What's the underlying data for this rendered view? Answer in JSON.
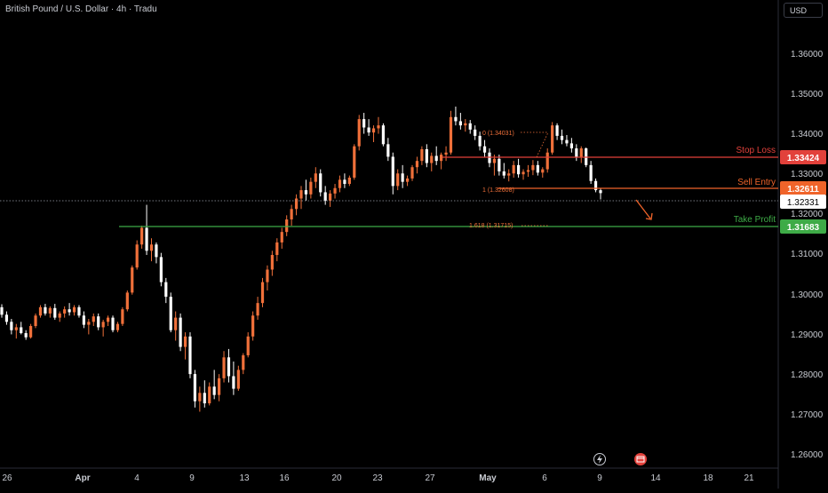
{
  "header": {
    "title": "British Pound / U.S. Dollar · 4h · Tradu",
    "currency": "USD"
  },
  "colors": {
    "bg": "#000000",
    "up": "#f0703a",
    "down": "#ffffff",
    "stop": "#e2413b",
    "entry": "#f0642a",
    "tp": "#3eab47",
    "axis_text": "#c9ccd3"
  },
  "y_axis": {
    "ticks": [
      "1.36000",
      "1.35000",
      "1.34000",
      "1.33000",
      "1.32000",
      "1.31000",
      "1.30000",
      "1.29000",
      "1.28000",
      "1.27000",
      "1.26000"
    ]
  },
  "x_axis": {
    "ticks": [
      "26",
      "Apr",
      "4",
      "9",
      "13",
      "16",
      "20",
      "23",
      "27",
      "May",
      "6",
      "9",
      "14",
      "18",
      "21"
    ]
  },
  "levels": {
    "stop_loss": {
      "label": "Stop Loss",
      "price": "1.33424",
      "value": 1.33424
    },
    "sell_entry": {
      "label": "Sell Entry",
      "price": "1.32611",
      "value": 1.32611
    },
    "take_profit": {
      "label": "Take Profit",
      "price": "1.31683",
      "value": 1.31683
    },
    "current": {
      "price": "1.32331",
      "value": 1.32331
    }
  },
  "fib_labels": {
    "f0": "0 (1.34031)",
    "f1": "1 (1.32608)",
    "f1618": "1.618 (1.31715)"
  },
  "icons": [
    "lightning-icon",
    "calendar-event-icon"
  ],
  "chart_data": {
    "type": "candlestick",
    "title": "British Pound / U.S. Dollar · 4h · Tradu",
    "ylim": [
      1.2575,
      1.3695
    ],
    "series": [
      {
        "name": "GBPUSD 4h",
        "values": [
          [
            1.296,
            1.2967,
            1.2935,
            1.2942
          ],
          [
            1.2942,
            1.295,
            1.2918,
            1.2925
          ],
          [
            1.2925,
            1.2932,
            1.2895,
            1.2905
          ],
          [
            1.2905,
            1.292,
            1.2885,
            1.2912
          ],
          [
            1.2912,
            1.2925,
            1.2895,
            1.2898
          ],
          [
            1.2898,
            1.2905,
            1.2882,
            1.2888
          ],
          [
            1.2888,
            1.292,
            1.2885,
            1.2915
          ],
          [
            1.2915,
            1.2945,
            1.291,
            1.294
          ],
          [
            1.294,
            1.2965,
            1.2935,
            1.296
          ],
          [
            1.296,
            1.2968,
            1.294,
            1.2945
          ],
          [
            1.2945,
            1.2962,
            1.2935,
            1.2958
          ],
          [
            1.2958,
            1.2968,
            1.293,
            1.2935
          ],
          [
            1.2935,
            1.295,
            1.2925,
            1.2945
          ],
          [
            1.2945,
            1.2962,
            1.2935,
            1.2955
          ],
          [
            1.2955,
            1.297,
            1.294,
            1.2948
          ],
          [
            1.2948,
            1.2965,
            1.294,
            1.296
          ],
          [
            1.296,
            1.2965,
            1.2935,
            1.294
          ],
          [
            1.294,
            1.295,
            1.291,
            1.2918
          ],
          [
            1.2918,
            1.2932,
            1.2895,
            1.2925
          ],
          [
            1.2925,
            1.2945,
            1.2915,
            1.2938
          ],
          [
            1.2938,
            1.2945,
            1.2905,
            1.2912
          ],
          [
            1.2912,
            1.293,
            1.289,
            1.2925
          ],
          [
            1.2925,
            1.294,
            1.2915,
            1.2935
          ],
          [
            1.2935,
            1.294,
            1.29,
            1.2905
          ],
          [
            1.2905,
            1.2925,
            1.29,
            1.292
          ],
          [
            1.292,
            1.296,
            1.2915,
            1.2955
          ],
          [
            1.2955,
            1.3,
            1.295,
            1.2995
          ],
          [
            1.2995,
            1.306,
            1.299,
            1.3055
          ],
          [
            1.3055,
            1.312,
            1.305,
            1.311
          ],
          [
            1.311,
            1.3155,
            1.31,
            1.315
          ],
          [
            1.315,
            1.3205,
            1.3085,
            1.3095
          ],
          [
            1.3095,
            1.3125,
            1.307,
            1.311
          ],
          [
            1.311,
            1.3115,
            1.3065,
            1.308
          ],
          [
            1.308,
            1.309,
            1.301,
            1.302
          ],
          [
            1.302,
            1.303,
            1.297,
            1.2985
          ],
          [
            1.2985,
            1.2995,
            1.29,
            1.2905
          ],
          [
            1.2905,
            1.295,
            1.288,
            1.2935
          ],
          [
            1.2935,
            1.2945,
            1.2855,
            1.2865
          ],
          [
            1.2865,
            1.29,
            1.2835,
            1.289
          ],
          [
            1.289,
            1.29,
            1.279,
            1.28
          ],
          [
            1.28,
            1.281,
            1.272,
            1.2735
          ],
          [
            1.2735,
            1.277,
            1.271,
            1.2755
          ],
          [
            1.2755,
            1.2785,
            1.272,
            1.273
          ],
          [
            1.273,
            1.278,
            1.2725,
            1.277
          ],
          [
            1.277,
            1.281,
            1.274,
            1.275
          ],
          [
            1.275,
            1.28,
            1.2735,
            1.279
          ],
          [
            1.279,
            1.2855,
            1.278,
            1.284
          ],
          [
            1.284,
            1.286,
            1.278,
            1.2795
          ],
          [
            1.2795,
            1.283,
            1.275,
            1.2765
          ],
          [
            1.2765,
            1.282,
            1.276,
            1.281
          ],
          [
            1.281,
            1.285,
            1.28,
            1.2845
          ],
          [
            1.2845,
            1.29,
            1.284,
            1.289
          ],
          [
            1.289,
            1.295,
            1.288,
            1.294
          ],
          [
            1.294,
            1.2985,
            1.293,
            1.297
          ],
          [
            1.297,
            1.303,
            1.296,
            1.302
          ],
          [
            1.302,
            1.306,
            1.3,
            1.305
          ],
          [
            1.305,
            1.3095,
            1.3035,
            1.3085
          ],
          [
            1.3085,
            1.3125,
            1.307,
            1.3115
          ],
          [
            1.3115,
            1.315,
            1.31,
            1.314
          ],
          [
            1.314,
            1.318,
            1.313,
            1.317
          ],
          [
            1.317,
            1.3205,
            1.3155,
            1.3195
          ],
          [
            1.3195,
            1.323,
            1.318,
            1.322
          ],
          [
            1.322,
            1.325,
            1.3195,
            1.324
          ],
          [
            1.324,
            1.3265,
            1.3215,
            1.323
          ],
          [
            1.323,
            1.327,
            1.322,
            1.326
          ],
          [
            1.326,
            1.3295,
            1.3245,
            1.328
          ],
          [
            1.328,
            1.329,
            1.3225,
            1.3235
          ],
          [
            1.3235,
            1.325,
            1.3205,
            1.3215
          ],
          [
            1.3215,
            1.324,
            1.32,
            1.3232
          ],
          [
            1.3232,
            1.3255,
            1.322,
            1.3245
          ],
          [
            1.3245,
            1.3275,
            1.3235,
            1.3265
          ],
          [
            1.3265,
            1.328,
            1.3245,
            1.3255
          ],
          [
            1.3255,
            1.3275,
            1.325,
            1.327
          ],
          [
            1.327,
            1.335,
            1.3265,
            1.3345
          ],
          [
            1.3345,
            1.342,
            1.3335,
            1.341
          ],
          [
            1.341,
            1.3425,
            1.3375,
            1.339
          ],
          [
            1.339,
            1.341,
            1.337,
            1.3378
          ],
          [
            1.3378,
            1.3395,
            1.3355,
            1.3388
          ],
          [
            1.3388,
            1.3415,
            1.3375,
            1.3395
          ],
          [
            1.3395,
            1.34,
            1.3345,
            1.335
          ],
          [
            1.335,
            1.3365,
            1.331,
            1.332
          ],
          [
            1.332,
            1.333,
            1.323,
            1.325
          ],
          [
            1.325,
            1.329,
            1.324,
            1.328
          ],
          [
            1.328,
            1.33,
            1.3245,
            1.326
          ],
          [
            1.326,
            1.3275,
            1.325,
            1.3268
          ],
          [
            1.3268,
            1.33,
            1.3262,
            1.3295
          ],
          [
            1.3295,
            1.332,
            1.328,
            1.331
          ],
          [
            1.331,
            1.3345,
            1.33,
            1.3338
          ],
          [
            1.3338,
            1.335,
            1.3295,
            1.3305
          ],
          [
            1.3305,
            1.333,
            1.3285,
            1.3322
          ],
          [
            1.3322,
            1.3345,
            1.33,
            1.331
          ],
          [
            1.331,
            1.333,
            1.329,
            1.3325
          ],
          [
            1.3325,
            1.3345,
            1.331,
            1.333
          ],
          [
            1.333,
            1.343,
            1.3325,
            1.3415
          ],
          [
            1.3415,
            1.344,
            1.3395,
            1.3405
          ],
          [
            1.3405,
            1.3425,
            1.3385,
            1.3395
          ],
          [
            1.3395,
            1.341,
            1.338,
            1.34
          ],
          [
            1.34,
            1.3408,
            1.3375,
            1.3385
          ],
          [
            1.3385,
            1.3395,
            1.336,
            1.337
          ],
          [
            1.337,
            1.338,
            1.3335,
            1.3345
          ],
          [
            1.3345,
            1.336,
            1.332,
            1.333
          ],
          [
            1.333,
            1.334,
            1.3295,
            1.3305
          ],
          [
            1.3305,
            1.3325,
            1.3275,
            1.3315
          ],
          [
            1.3315,
            1.3325,
            1.3275,
            1.3285
          ],
          [
            1.3285,
            1.3305,
            1.3268,
            1.3275
          ],
          [
            1.3275,
            1.329,
            1.3261,
            1.328
          ],
          [
            1.328,
            1.331,
            1.327,
            1.33
          ],
          [
            1.33,
            1.3315,
            1.327,
            1.3278
          ],
          [
            1.3278,
            1.329,
            1.3265,
            1.3284
          ],
          [
            1.3284,
            1.33,
            1.3272,
            1.3288
          ],
          [
            1.3288,
            1.3312,
            1.3276,
            1.33
          ],
          [
            1.33,
            1.331,
            1.3275,
            1.3282
          ],
          [
            1.3282,
            1.3295,
            1.327,
            1.329
          ],
          [
            1.329,
            1.334,
            1.3282,
            1.333
          ],
          [
            1.333,
            1.3403,
            1.3325,
            1.3395
          ],
          [
            1.3395,
            1.34,
            1.336,
            1.337
          ],
          [
            1.337,
            1.3385,
            1.335,
            1.336
          ],
          [
            1.336,
            1.3372,
            1.3345,
            1.3352
          ],
          [
            1.3352,
            1.3365,
            1.333,
            1.334
          ],
          [
            1.334,
            1.335,
            1.331,
            1.332
          ],
          [
            1.332,
            1.3345,
            1.3305,
            1.334
          ],
          [
            1.334,
            1.3342,
            1.3295,
            1.33
          ],
          [
            1.33,
            1.331,
            1.3255,
            1.3262
          ],
          [
            1.3262,
            1.3268,
            1.3235,
            1.324
          ],
          [
            1.324,
            1.3245,
            1.3218,
            1.3233
          ]
        ]
      }
    ]
  }
}
